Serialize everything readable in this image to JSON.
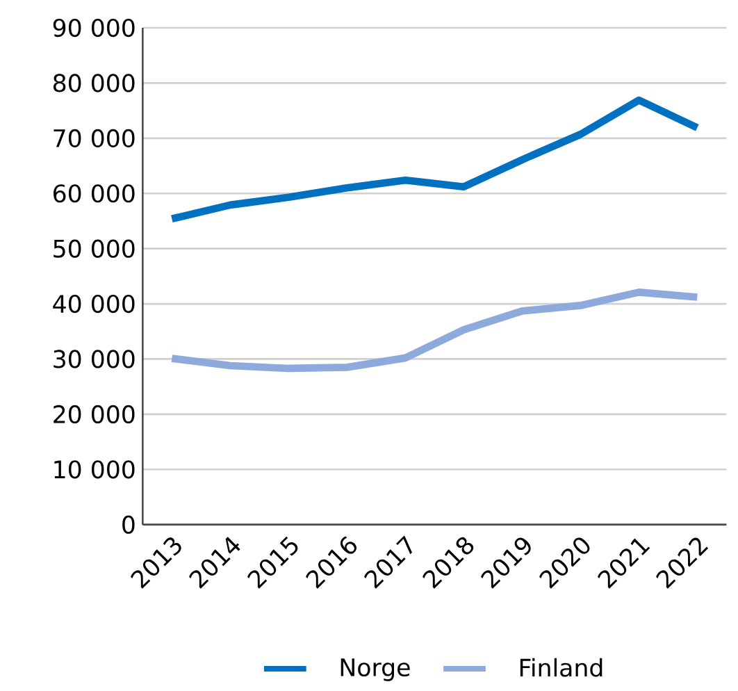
{
  "chart_data": {
    "type": "line",
    "categories": [
      "2013",
      "2014",
      "2015",
      "2016",
      "2017",
      "2018",
      "2019",
      "2020",
      "2021",
      "2022"
    ],
    "series": [
      {
        "name": "Norge",
        "color": "#0070c0",
        "values": [
          55400,
          57900,
          59300,
          61000,
          62400,
          61200,
          66100,
          70700,
          76900,
          71900
        ]
      },
      {
        "name": "Finland",
        "color": "#8eaadc",
        "values": [
          30100,
          28800,
          28300,
          28500,
          30200,
          35300,
          38700,
          39700,
          42100,
          41200
        ]
      }
    ],
    "ylim": [
      0,
      90000
    ],
    "yticks": [
      {
        "value": 0,
        "label": "0"
      },
      {
        "value": 10000,
        "label": "10 000"
      },
      {
        "value": 20000,
        "label": "20 000"
      },
      {
        "value": 30000,
        "label": "30 000"
      },
      {
        "value": 40000,
        "label": "40 000"
      },
      {
        "value": 50000,
        "label": "50 000"
      },
      {
        "value": 60000,
        "label": "60 000"
      },
      {
        "value": 70000,
        "label": "70 000"
      },
      {
        "value": 80000,
        "label": "80 000"
      },
      {
        "value": 90000,
        "label": "90 000"
      }
    ],
    "grid": "y",
    "legend": "bottom",
    "marker": "none",
    "line_style": "solid"
  }
}
